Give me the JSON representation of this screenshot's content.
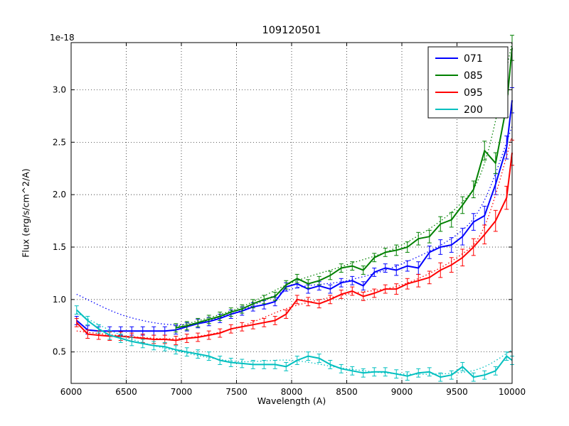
{
  "figure": {
    "title": "109120501",
    "offset_text": "1e-18",
    "xlabel": "Wavelength (A)",
    "ylabel": "Flux (erg/s/cm^2/A)"
  },
  "chart_data": {
    "type": "line",
    "title": "109120501",
    "xlabel": "Wavelength (A)",
    "ylabel": "Flux (erg/s/cm^2/A)",
    "y_offset_text": "1e-18",
    "xlim": [
      6000,
      10000
    ],
    "ylim": [
      0.2,
      3.45
    ],
    "xticks": [
      6000,
      6500,
      7000,
      7500,
      8000,
      8500,
      9000,
      9500,
      10000
    ],
    "xtick_labels": [
      "6000",
      "6500",
      "7000",
      "7500",
      "8000",
      "8500",
      "9000",
      "9500",
      "10000"
    ],
    "yticks": [
      0.5,
      1.0,
      1.5,
      2.0,
      2.5,
      3.0
    ],
    "ytick_labels": [
      "0.5",
      "1.0",
      "1.5",
      "2.0",
      "2.5",
      "3.0"
    ],
    "grid": true,
    "grid_style": "dotted",
    "legend_position": "upper right",
    "legend_labels": [
      "071",
      "085",
      "095",
      "200"
    ],
    "series": [
      {
        "name": "071",
        "color": "#0000ff",
        "x": [
          6050,
          6150,
          6250,
          6350,
          6450,
          6550,
          6650,
          6750,
          6850,
          6950,
          7050,
          7150,
          7250,
          7350,
          7450,
          7550,
          7650,
          7750,
          7850,
          7950,
          8050,
          8150,
          8250,
          8350,
          8450,
          8550,
          8650,
          8750,
          8850,
          8950,
          9050,
          9150,
          9250,
          9350,
          9450,
          9550,
          9650,
          9750,
          9850,
          9950,
          10000
        ],
        "y": [
          0.8,
          0.71,
          0.7,
          0.7,
          0.7,
          0.7,
          0.7,
          0.7,
          0.7,
          0.71,
          0.74,
          0.77,
          0.79,
          0.82,
          0.86,
          0.89,
          0.93,
          0.95,
          0.98,
          1.12,
          1.15,
          1.1,
          1.13,
          1.1,
          1.16,
          1.18,
          1.13,
          1.26,
          1.3,
          1.28,
          1.32,
          1.3,
          1.45,
          1.5,
          1.52,
          1.6,
          1.74,
          1.8,
          2.1,
          2.45,
          2.9
        ],
        "yerr": [
          0.04,
          0.04,
          0.04,
          0.04,
          0.04,
          0.04,
          0.04,
          0.04,
          0.04,
          0.04,
          0.04,
          0.04,
          0.04,
          0.04,
          0.04,
          0.04,
          0.04,
          0.04,
          0.04,
          0.04,
          0.04,
          0.04,
          0.04,
          0.04,
          0.04,
          0.04,
          0.04,
          0.04,
          0.04,
          0.05,
          0.05,
          0.06,
          0.06,
          0.07,
          0.07,
          0.08,
          0.08,
          0.09,
          0.1,
          0.11,
          0.12
        ],
        "model_x": [
          6050,
          6500,
          7000,
          7500,
          8000,
          8500,
          9000,
          9500,
          9750,
          10000
        ],
        "model_y": [
          1.05,
          0.84,
          0.76,
          0.88,
          1.1,
          1.18,
          1.34,
          1.62,
          1.95,
          2.65
        ]
      },
      {
        "name": "085",
        "color": "#008000",
        "x": [
          6950,
          7050,
          7150,
          7250,
          7350,
          7450,
          7550,
          7650,
          7750,
          7850,
          7950,
          8050,
          8150,
          8250,
          8350,
          8450,
          8550,
          8650,
          8750,
          8850,
          8950,
          9050,
          9150,
          9250,
          9350,
          9450,
          9550,
          9650,
          9750,
          9850,
          9950,
          10000
        ],
        "y": [
          0.73,
          0.75,
          0.78,
          0.81,
          0.84,
          0.88,
          0.91,
          0.96,
          1.0,
          1.03,
          1.14,
          1.2,
          1.15,
          1.18,
          1.23,
          1.3,
          1.32,
          1.28,
          1.4,
          1.45,
          1.47,
          1.5,
          1.58,
          1.6,
          1.72,
          1.76,
          1.9,
          2.05,
          2.42,
          2.3,
          2.85,
          3.4
        ],
        "yerr": [
          0.04,
          0.04,
          0.04,
          0.04,
          0.04,
          0.04,
          0.04,
          0.04,
          0.04,
          0.04,
          0.04,
          0.04,
          0.04,
          0.04,
          0.04,
          0.04,
          0.04,
          0.04,
          0.04,
          0.04,
          0.05,
          0.05,
          0.06,
          0.06,
          0.07,
          0.07,
          0.08,
          0.08,
          0.09,
          0.1,
          0.11,
          0.12
        ],
        "model_x": [
          6950,
          7500,
          8000,
          8500,
          9000,
          9500,
          9750,
          10000
        ],
        "model_y": [
          0.74,
          0.91,
          1.16,
          1.33,
          1.52,
          1.88,
          2.3,
          3.45
        ]
      },
      {
        "name": "095",
        "color": "#ff0000",
        "x": [
          6050,
          6150,
          6250,
          6350,
          6450,
          6550,
          6650,
          6750,
          6850,
          6950,
          7050,
          7150,
          7250,
          7350,
          7450,
          7550,
          7650,
          7750,
          7850,
          7950,
          8050,
          8150,
          8250,
          8350,
          8450,
          8550,
          8650,
          8750,
          8850,
          8950,
          9050,
          9150,
          9250,
          9350,
          9450,
          9550,
          9650,
          9750,
          9850,
          9950,
          10000
        ],
        "y": [
          0.78,
          0.67,
          0.66,
          0.65,
          0.65,
          0.64,
          0.63,
          0.62,
          0.62,
          0.61,
          0.63,
          0.64,
          0.66,
          0.68,
          0.72,
          0.74,
          0.76,
          0.78,
          0.8,
          0.86,
          1.0,
          0.98,
          0.96,
          1.0,
          1.05,
          1.08,
          1.03,
          1.06,
          1.1,
          1.1,
          1.15,
          1.18,
          1.21,
          1.28,
          1.33,
          1.4,
          1.5,
          1.62,
          1.75,
          1.97,
          2.4
        ],
        "yerr": [
          0.04,
          0.04,
          0.04,
          0.04,
          0.04,
          0.04,
          0.04,
          0.04,
          0.04,
          0.04,
          0.04,
          0.04,
          0.04,
          0.04,
          0.04,
          0.04,
          0.04,
          0.04,
          0.04,
          0.04,
          0.04,
          0.04,
          0.04,
          0.04,
          0.04,
          0.04,
          0.04,
          0.04,
          0.04,
          0.05,
          0.05,
          0.06,
          0.06,
          0.07,
          0.07,
          0.08,
          0.08,
          0.09,
          0.1,
          0.11,
          0.12
        ],
        "model_x": [
          6050,
          6500,
          7000,
          7500,
          8000,
          8500,
          9000,
          9500,
          9750,
          10000
        ],
        "model_y": [
          0.7,
          0.65,
          0.63,
          0.73,
          0.93,
          1.05,
          1.14,
          1.4,
          1.7,
          2.55
        ]
      },
      {
        "name": "200",
        "color": "#00bfbf",
        "x": [
          6050,
          6150,
          6250,
          6350,
          6450,
          6550,
          6650,
          6750,
          6850,
          6950,
          7050,
          7150,
          7250,
          7350,
          7450,
          7550,
          7650,
          7750,
          7850,
          7950,
          8050,
          8150,
          8250,
          8350,
          8450,
          8550,
          8650,
          8750,
          8850,
          8950,
          9050,
          9150,
          9250,
          9350,
          9450,
          9550,
          9650,
          9750,
          9850,
          9950,
          10000
        ],
        "y": [
          0.9,
          0.8,
          0.72,
          0.66,
          0.63,
          0.6,
          0.58,
          0.56,
          0.55,
          0.52,
          0.5,
          0.48,
          0.46,
          0.42,
          0.4,
          0.39,
          0.38,
          0.38,
          0.38,
          0.36,
          0.42,
          0.46,
          0.44,
          0.38,
          0.34,
          0.32,
          0.3,
          0.31,
          0.31,
          0.29,
          0.27,
          0.3,
          0.31,
          0.26,
          0.28,
          0.36,
          0.26,
          0.28,
          0.32,
          0.46,
          0.42
        ],
        "yerr": [
          0.04,
          0.04,
          0.04,
          0.04,
          0.04,
          0.04,
          0.04,
          0.04,
          0.04,
          0.04,
          0.04,
          0.04,
          0.04,
          0.04,
          0.04,
          0.04,
          0.04,
          0.04,
          0.04,
          0.04,
          0.04,
          0.04,
          0.04,
          0.04,
          0.04,
          0.04,
          0.04,
          0.04,
          0.04,
          0.04,
          0.04,
          0.04,
          0.04,
          0.04,
          0.04,
          0.04,
          0.04,
          0.04,
          0.04,
          0.04,
          0.04
        ],
        "model_x": [
          6050,
          6500,
          7000,
          7500,
          8000,
          8500,
          9000,
          9500,
          9750,
          10000
        ],
        "model_y": [
          0.87,
          0.64,
          0.5,
          0.41,
          0.42,
          0.34,
          0.29,
          0.3,
          0.36,
          0.52
        ]
      }
    ]
  }
}
